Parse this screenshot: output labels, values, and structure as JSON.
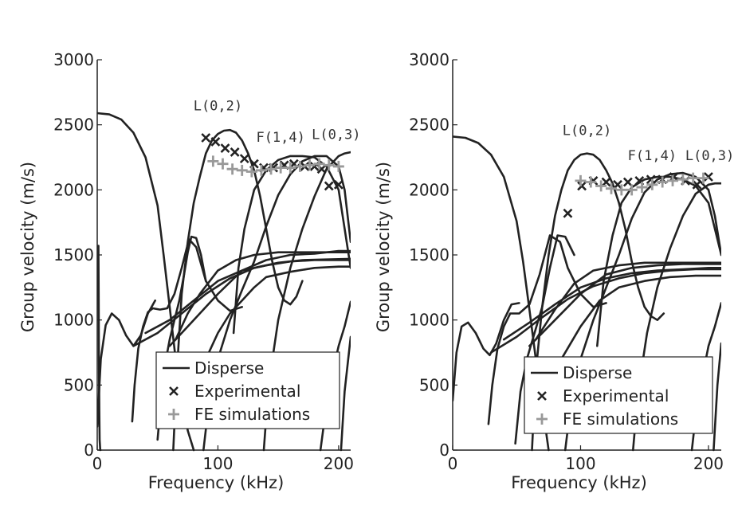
{
  "chart_data": [
    {
      "type": "line",
      "xlabel": "Frequency (kHz)",
      "ylabel": "Group velocity (m/s)",
      "xlim": [
        0,
        210
      ],
      "ylim": [
        0,
        3000
      ],
      "xticks": [
        0,
        100,
        200
      ],
      "yticks": [
        0,
        500,
        1000,
        1500,
        2000,
        2500,
        3000
      ],
      "legend": {
        "placement": "bottom-right",
        "entries": [
          "Disperse",
          "Experimental",
          "FE simulations"
        ]
      },
      "annotations": [
        {
          "text": "L(0,2)",
          "x": 100,
          "y": 2610
        },
        {
          "text": "F(1,4)",
          "x": 152,
          "y": 2370
        },
        {
          "text": "L(0,3)",
          "x": 198,
          "y": 2390
        }
      ],
      "series": [
        {
          "type": "line",
          "x": [
            0,
            10,
            20,
            30,
            40,
            50,
            55,
            60,
            65,
            70,
            75,
            80
          ],
          "y": [
            2590,
            2580,
            2540,
            2440,
            2250,
            1880,
            1500,
            1100,
            700,
            400,
            150,
            0
          ]
        },
        {
          "type": "line",
          "x": [
            1,
            1.2,
            1.4,
            1.7,
            2,
            2.5
          ],
          "y": [
            1570,
            1200,
            700,
            300,
            80,
            0
          ]
        },
        {
          "type": "line",
          "x": [
            0,
            3,
            7,
            12,
            18,
            24,
            30,
            36,
            42,
            48
          ],
          "y": [
            180,
            700,
            960,
            1050,
            1000,
            880,
            800,
            880,
            1050,
            1150
          ]
        },
        {
          "type": "line",
          "x": [
            29,
            31,
            34,
            38,
            42,
            46,
            52,
            58,
            64,
            70,
            76,
            82,
            90,
            100,
            110,
            120
          ],
          "y": [
            220,
            500,
            780,
            950,
            1060,
            1090,
            1080,
            1090,
            1200,
            1400,
            1620,
            1560,
            1300,
            1150,
            1070,
            1100
          ]
        },
        {
          "type": "line",
          "x": [
            50,
            53,
            56,
            60,
            64,
            68,
            72,
            75,
            78,
            82,
            86,
            90
          ],
          "y": [
            80,
            400,
            650,
            850,
            1000,
            1150,
            1350,
            1520,
            1640,
            1630,
            1500,
            1300
          ]
        },
        {
          "type": "line",
          "x": [
            30,
            50,
            70,
            90,
            110,
            130,
            150,
            170,
            190,
            210
          ],
          "y": [
            800,
            900,
            1050,
            1200,
            1320,
            1400,
            1440,
            1460,
            1465,
            1470
          ]
        },
        {
          "type": "line",
          "x": [
            40,
            60,
            80,
            100,
            120,
            140,
            160,
            180,
            200,
            210
          ],
          "y": [
            900,
            1000,
            1150,
            1300,
            1380,
            1420,
            1450,
            1460,
            1460,
            1460
          ]
        },
        {
          "type": "line",
          "x": [
            60,
            80,
            100,
            120,
            140,
            160,
            180,
            200,
            210
          ],
          "y": [
            800,
            1000,
            1200,
            1380,
            1460,
            1500,
            1510,
            1530,
            1530
          ]
        },
        {
          "type": "line",
          "x": [
            65,
            75,
            85,
            100,
            115,
            130,
            150,
            170,
            190,
            210
          ],
          "y": [
            850,
            1050,
            1200,
            1380,
            1460,
            1500,
            1520,
            1520,
            1520,
            1520
          ]
        },
        {
          "type": "line",
          "x": [
            90,
            100,
            110,
            120,
            130,
            140,
            160,
            180,
            200,
            210
          ],
          "y": [
            700,
            900,
            1050,
            1150,
            1250,
            1330,
            1370,
            1400,
            1410,
            1410
          ]
        },
        {
          "type": "line",
          "x": [
            63,
            66,
            70,
            75,
            80,
            85,
            90,
            95,
            100,
            105,
            110,
            115,
            120,
            125,
            130,
            135,
            140,
            145,
            150,
            155,
            160,
            165,
            170
          ],
          "y": [
            0,
            600,
            1200,
            1600,
            1900,
            2100,
            2280,
            2380,
            2430,
            2455,
            2460,
            2440,
            2380,
            2280,
            2150,
            1950,
            1700,
            1450,
            1250,
            1150,
            1120,
            1180,
            1300
          ]
        },
        {
          "type": "line",
          "x": [
            88,
            93,
            100,
            110,
            120,
            130,
            140,
            150,
            160,
            170,
            180,
            190,
            200,
            205,
            210
          ],
          "y": [
            0,
            400,
            700,
            1000,
            1230,
            1450,
            1720,
            1960,
            2120,
            2220,
            2260,
            2260,
            2180,
            2000,
            1600
          ]
        },
        {
          "type": "line",
          "x": [
            138,
            142,
            150,
            160,
            170,
            180,
            190,
            200,
            205,
            210
          ],
          "y": [
            0,
            500,
            1000,
            1400,
            1700,
            1950,
            2160,
            2260,
            2280,
            2290
          ]
        },
        {
          "type": "line",
          "x": [
            185,
            190,
            195,
            200,
            205,
            210
          ],
          "y": [
            0,
            350,
            600,
            800,
            950,
            1140
          ]
        },
        {
          "type": "line",
          "x": [
            202,
            205,
            210
          ],
          "y": [
            0,
            450,
            870
          ]
        },
        {
          "type": "line",
          "x": [
            113,
            117,
            122,
            130,
            140,
            150,
            160,
            170,
            180,
            190,
            200,
            210
          ],
          "y": [
            900,
            1400,
            1700,
            2000,
            2150,
            2230,
            2260,
            2260,
            2250,
            2180,
            2000,
            1400
          ]
        },
        {
          "name": "Experimental",
          "type": "scatter",
          "marker": "x",
          "color": "#222222",
          "x": [
            90,
            98,
            106,
            114,
            122,
            130,
            138,
            146,
            155,
            163,
            172,
            180,
            186,
            192,
            200
          ],
          "y": [
            2400,
            2370,
            2320,
            2290,
            2240,
            2200,
            2170,
            2170,
            2190,
            2200,
            2180,
            2180,
            2160,
            2030,
            2040
          ]
        },
        {
          "name": "FE simulations",
          "type": "scatter",
          "marker": "+",
          "color": "#999999",
          "x": [
            96,
            104,
            112,
            120,
            128,
            136,
            144,
            152,
            160,
            168,
            176,
            184,
            192,
            200
          ],
          "y": [
            2220,
            2200,
            2160,
            2150,
            2140,
            2150,
            2160,
            2170,
            2170,
            2180,
            2190,
            2200,
            2190,
            2180
          ]
        }
      ]
    },
    {
      "type": "line",
      "xlabel": "Frequency (kHz)",
      "ylabel": "Group velocity (m/s)",
      "xlim": [
        0,
        210
      ],
      "ylim": [
        0,
        3000
      ],
      "xticks": [
        0,
        100,
        200
      ],
      "yticks": [
        0,
        500,
        1000,
        1500,
        2000,
        2500,
        3000
      ],
      "legend": {
        "placement": "bottom-right",
        "entries": [
          "Disperse",
          "Experimental",
          "FE simulations"
        ]
      },
      "annotations": [
        {
          "text": "L(0,2)",
          "x": 105,
          "y": 2420
        },
        {
          "text": "F(1,4)",
          "x": 156,
          "y": 2230
        },
        {
          "text": "L(0,3)",
          "x": 201,
          "y": 2230
        }
      ],
      "series": [
        {
          "type": "line",
          "x": [
            0,
            10,
            20,
            30,
            40,
            50,
            55,
            60,
            65,
            70,
            75
          ],
          "y": [
            2410,
            2400,
            2360,
            2270,
            2100,
            1760,
            1450,
            1080,
            700,
            350,
            0
          ]
        },
        {
          "type": "line",
          "x": [
            0,
            3,
            7,
            12,
            18,
            24,
            29,
            34,
            40,
            46,
            52
          ],
          "y": [
            380,
            750,
            950,
            980,
            900,
            780,
            730,
            820,
            1000,
            1120,
            1130
          ]
        },
        {
          "type": "line",
          "x": [
            28,
            31,
            35,
            40,
            45,
            52,
            60,
            68,
            76,
            84,
            90,
            100,
            110,
            120
          ],
          "y": [
            200,
            500,
            780,
            950,
            1050,
            1050,
            1120,
            1350,
            1650,
            1600,
            1400,
            1200,
            1100,
            1130
          ]
        },
        {
          "type": "line",
          "x": [
            49,
            53,
            58,
            64,
            70,
            76,
            82,
            88,
            95
          ],
          "y": [
            50,
            450,
            700,
            900,
            1100,
            1400,
            1650,
            1640,
            1500
          ]
        },
        {
          "type": "line",
          "x": [
            30,
            50,
            70,
            90,
            110,
            130,
            150,
            170,
            190,
            210
          ],
          "y": [
            750,
            870,
            1020,
            1160,
            1260,
            1320,
            1360,
            1380,
            1390,
            1390
          ]
        },
        {
          "type": "line",
          "x": [
            40,
            60,
            80,
            100,
            120,
            140,
            160,
            180,
            200,
            210
          ],
          "y": [
            850,
            980,
            1120,
            1250,
            1320,
            1360,
            1380,
            1390,
            1400,
            1400
          ]
        },
        {
          "type": "line",
          "x": [
            60,
            80,
            100,
            120,
            140,
            160,
            180,
            200,
            210
          ],
          "y": [
            800,
            1000,
            1200,
            1350,
            1400,
            1420,
            1430,
            1430,
            1430
          ]
        },
        {
          "type": "line",
          "x": [
            65,
            80,
            95,
            110,
            130,
            150,
            170,
            190,
            210
          ],
          "y": [
            850,
            1080,
            1280,
            1380,
            1420,
            1440,
            1440,
            1440,
            1440
          ]
        },
        {
          "type": "line",
          "x": [
            85,
            100,
            115,
            130,
            150,
            170,
            190,
            210
          ],
          "y": [
            700,
            950,
            1150,
            1250,
            1300,
            1330,
            1340,
            1340
          ]
        },
        {
          "type": "line",
          "x": [
            62,
            65,
            70,
            75,
            80,
            85,
            90,
            95,
            100,
            105,
            110,
            115,
            120,
            125,
            130,
            135,
            140,
            145,
            150,
            155,
            160,
            165
          ],
          "y": [
            0,
            600,
            1100,
            1500,
            1800,
            2000,
            2150,
            2230,
            2270,
            2280,
            2270,
            2230,
            2150,
            2050,
            1900,
            1700,
            1450,
            1250,
            1100,
            1030,
            1000,
            1050
          ]
        },
        {
          "type": "line",
          "x": [
            88,
            93,
            100,
            110,
            120,
            130,
            140,
            150,
            160,
            170,
            180,
            190,
            200,
            205,
            210
          ],
          "y": [
            0,
            400,
            700,
            1000,
            1250,
            1500,
            1780,
            1980,
            2080,
            2120,
            2130,
            2100,
            2000,
            1800,
            1500
          ]
        },
        {
          "type": "line",
          "x": [
            141,
            145,
            152,
            160,
            170,
            180,
            190,
            200,
            205,
            210
          ],
          "y": [
            0,
            450,
            900,
            1250,
            1550,
            1800,
            1970,
            2040,
            2050,
            2050
          ]
        },
        {
          "type": "line",
          "x": [
            187,
            191,
            196,
            200,
            205,
            210
          ],
          "y": [
            0,
            350,
            600,
            800,
            950,
            1130
          ]
        },
        {
          "type": "line",
          "x": [
            204,
            207,
            210
          ],
          "y": [
            0,
            500,
            820
          ]
        },
        {
          "type": "line",
          "x": [
            113,
            118,
            125,
            132,
            140,
            150,
            160,
            170,
            180,
            190,
            200,
            210
          ],
          "y": [
            800,
            1300,
            1650,
            1900,
            2020,
            2080,
            2100,
            2100,
            2080,
            2030,
            1900,
            1500
          ]
        },
        {
          "name": "Experimental",
          "type": "scatter",
          "marker": "x",
          "color": "#222222",
          "x": [
            90,
            101,
            110,
            120,
            129,
            137,
            146,
            155,
            164,
            173,
            182,
            191,
            200
          ],
          "y": [
            1820,
            2030,
            2070,
            2060,
            2040,
            2060,
            2070,
            2080,
            2080,
            2100,
            2070,
            2040,
            2100
          ]
        },
        {
          "name": "FE simulations",
          "type": "scatter",
          "marker": "+",
          "color": "#999999",
          "x": [
            100,
            108,
            116,
            124,
            132,
            140,
            148,
            156,
            164,
            172,
            180,
            188,
            196
          ],
          "y": [
            2070,
            2060,
            2030,
            2010,
            2000,
            2000,
            2020,
            2040,
            2060,
            2070,
            2080,
            2090,
            2090
          ]
        }
      ]
    }
  ]
}
